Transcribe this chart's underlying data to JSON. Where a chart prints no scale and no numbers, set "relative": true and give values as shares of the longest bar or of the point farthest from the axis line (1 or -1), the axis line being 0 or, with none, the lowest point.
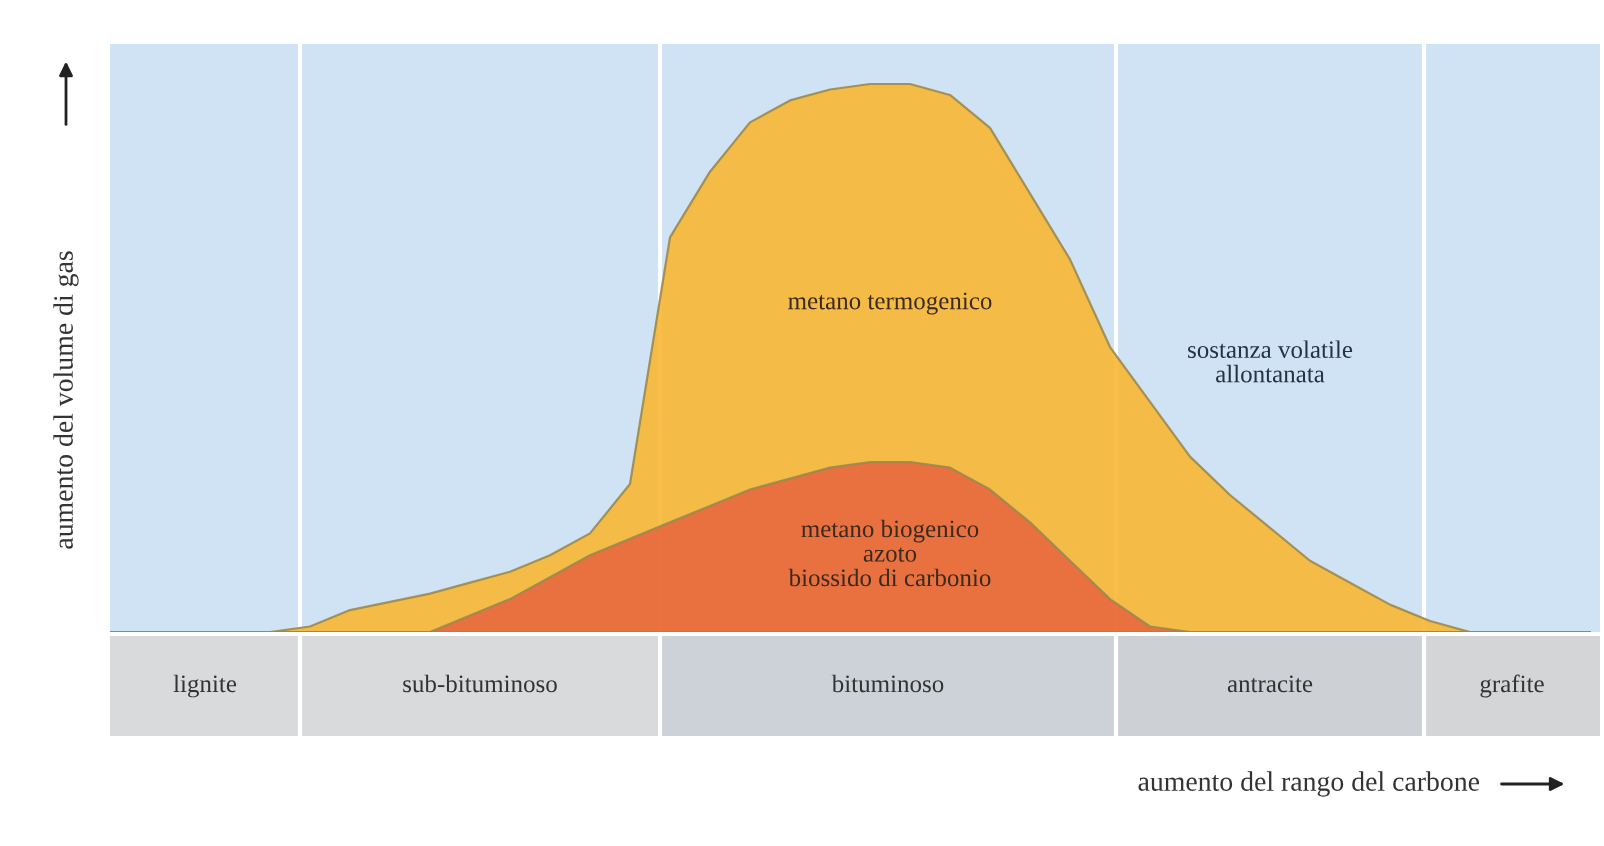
{
  "chart_data": {
    "type": "area",
    "relative": true,
    "ylabel": "aumento del volume di gas",
    "categories": [
      null,
      null,
      null,
      null,
      null,
      null,
      null,
      null,
      null,
      null,
      null,
      null,
      null,
      null,
      null,
      null,
      null,
      null,
      null,
      null,
      null,
      null,
      null,
      null,
      null,
      null,
      null,
      null,
      null,
      null,
      null,
      null,
      null,
      null,
      null,
      null,
      null,
      null
    ],
    "series": [
      {
        "name": "metano termogenico",
        "color": "#f7b733",
        "values": [
          0,
          0,
          0,
          0,
          0,
          0.01,
          0.04,
          0.055,
          0.07,
          0.09,
          0.11,
          0.14,
          0.18,
          0.27,
          0.72,
          0.84,
          0.93,
          0.97,
          0.99,
          1.0,
          1.0,
          0.98,
          0.92,
          0.8,
          0.68,
          0.52,
          0.42,
          0.32,
          0.25,
          0.19,
          0.13,
          0.09,
          0.05,
          0.02,
          0,
          0,
          0,
          0
        ]
      },
      {
        "name": "metano biogenico\nazoto\nbiossido di carbonio",
        "color": "#e8683f",
        "values": [
          0,
          0,
          0,
          0,
          0,
          0,
          0,
          0,
          0,
          0.03,
          0.06,
          0.1,
          0.14,
          0.17,
          0.2,
          0.23,
          0.26,
          0.28,
          0.3,
          0.31,
          0.31,
          0.3,
          0.26,
          0.2,
          0.13,
          0.06,
          0.01,
          0,
          0,
          0,
          0,
          0,
          0,
          0,
          0,
          0,
          0,
          0
        ]
      }
    ],
    "annotations": [
      "lignite",
      "sub-bituminoso",
      "bituminoso",
      "antracite",
      "grafite",
      "sostanza volatile\nallontanata",
      "aumento del rango del carbone"
    ],
    "legend": false
  }
}
